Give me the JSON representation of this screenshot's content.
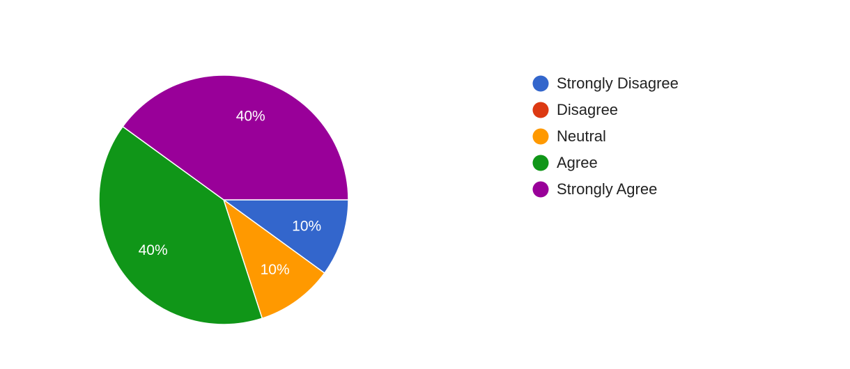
{
  "chart_data": {
    "type": "pie",
    "categories": [
      "Strongly Disagree",
      "Disagree",
      "Neutral",
      "Agree",
      "Strongly Agree"
    ],
    "values": [
      10,
      0,
      10,
      40,
      40
    ],
    "value_labels": [
      "10%",
      null,
      "10%",
      "40%",
      "40%"
    ],
    "colors": [
      "#3366cc",
      "#dc3912",
      "#ff9900",
      "#109618",
      "#990099"
    ],
    "legend": "right"
  }
}
